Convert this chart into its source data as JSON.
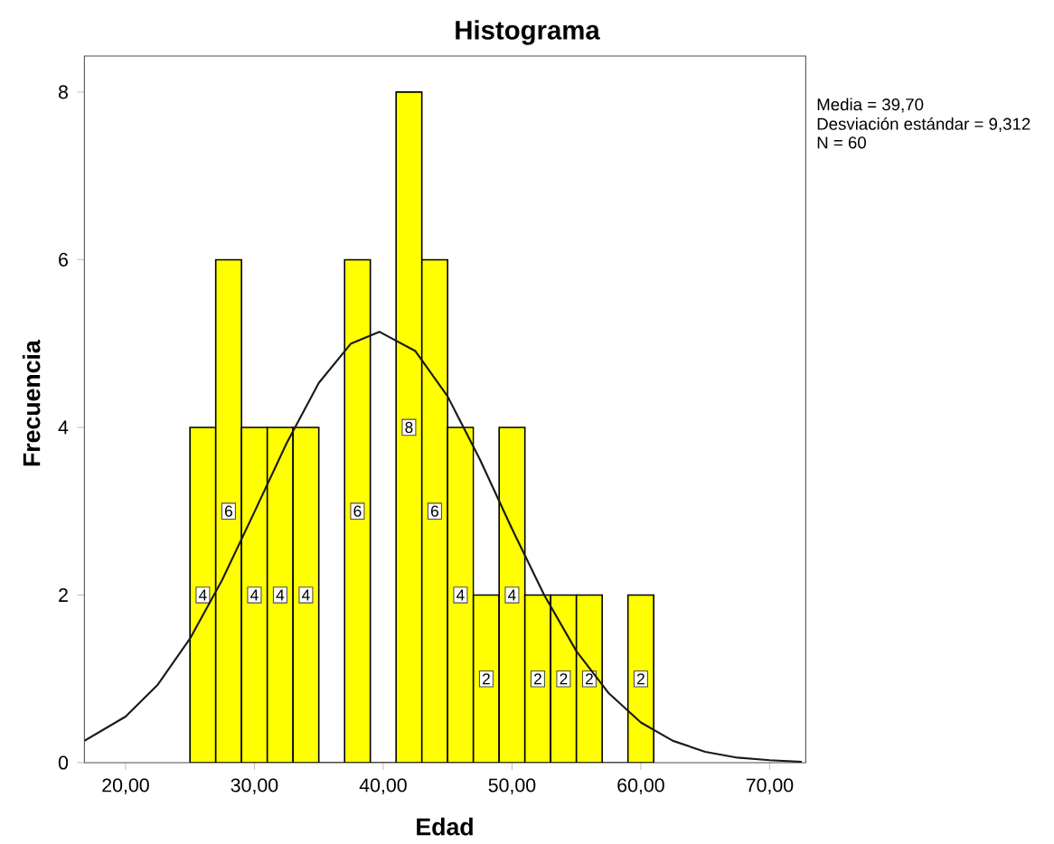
{
  "chart_data": {
    "type": "histogram",
    "title": "Histograma",
    "xlabel": "Edad",
    "ylabel": "Frecuencia",
    "bins": [
      25,
      27,
      29,
      31,
      33,
      35,
      37,
      39,
      41,
      43,
      45,
      47,
      49,
      51,
      53,
      55,
      57,
      59,
      61
    ],
    "values": [
      4,
      6,
      4,
      4,
      4,
      0,
      6,
      0,
      8,
      6,
      4,
      2,
      4,
      2,
      2,
      2,
      0,
      2
    ],
    "color": "#ffff00",
    "value_labels": [
      "4",
      "6",
      "4",
      "4",
      "4",
      null,
      "6",
      null,
      "8",
      "6",
      "4",
      "2",
      "4",
      "2",
      "2",
      "2",
      null,
      "2"
    ],
    "series": [
      {
        "type": "line",
        "color": "#1a1a1a",
        "x": [
          16.8,
          20,
          22.5,
          25,
          27.5,
          30,
          32.5,
          35,
          37.5,
          39.7,
          42.5,
          45,
          47.5,
          50,
          52.5,
          55,
          57.5,
          60,
          62.5,
          65,
          67.5,
          70,
          72.5
        ],
        "values": [
          0.26,
          0.55,
          0.93,
          1.48,
          2.18,
          2.99,
          3.81,
          4.53,
          5.0,
          5.14,
          4.91,
          4.37,
          3.62,
          2.79,
          2.0,
          1.33,
          0.83,
          0.48,
          0.26,
          0.13,
          0.06,
          0.03,
          0.01
        ]
      }
    ],
    "xlim": [
      16.8,
      72.8
    ],
    "ylim": [
      0,
      8.43
    ],
    "xticks": [
      {
        "value": 20,
        "label": "20,00"
      },
      {
        "value": 30,
        "label": "30,00"
      },
      {
        "value": 40,
        "label": "40,00"
      },
      {
        "value": 50,
        "label": "50,00"
      },
      {
        "value": 60,
        "label": "60,00"
      },
      {
        "value": 70,
        "label": "70,00"
      }
    ],
    "yticks": [
      0,
      2,
      4,
      6,
      8
    ],
    "annotations": [
      "Media = 39,70",
      "Desviación estándar = 9,312",
      "N = 60"
    ],
    "grid": false,
    "marker": "none",
    "line_style": "solid"
  }
}
